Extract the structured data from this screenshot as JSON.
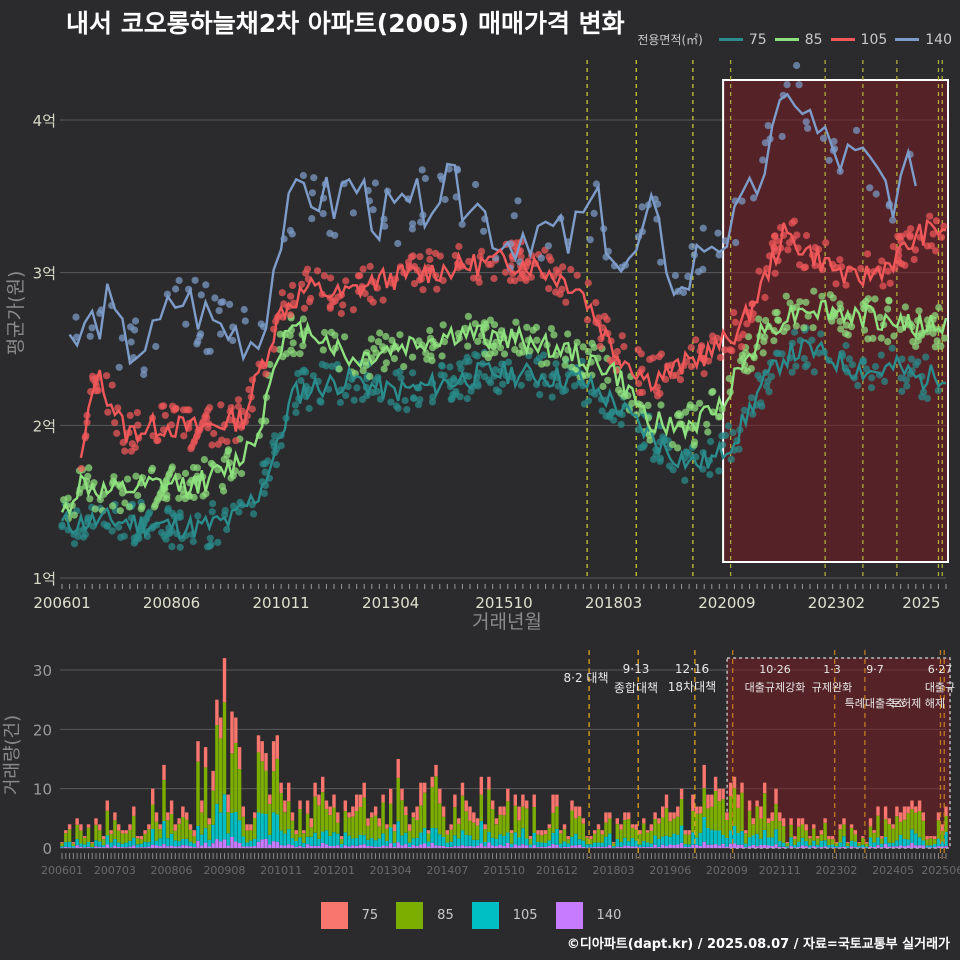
{
  "title": "내서 코오롱하늘채2차 아파트(2005) 매매가격 변화",
  "legend_title": "전용면적(㎡)",
  "series_colors": {
    "75": "#2a8c8c",
    "85": "#8fe07e",
    "105": "#f0585a",
    "140": "#7d9cc9"
  },
  "bar_colors": {
    "75": "#f8766d",
    "85": "#7cae00",
    "105": "#00bfc4",
    "140": "#c77cff"
  },
  "credit": "©디아파트(dapt.kr) / 2025.08.07 / 자료=국토교통부 실거래가",
  "chart_data": [
    {
      "type": "line",
      "xlabel": "거래년월",
      "ylabel": "평균가(원)",
      "ylim": [
        "1억",
        "4억 +"
      ],
      "y_ticks": [
        {
          "v": 1,
          "label": "1억"
        },
        {
          "v": 2,
          "label": "2억"
        },
        {
          "v": 3,
          "label": "3억"
        },
        {
          "v": 4,
          "label": "4억"
        }
      ],
      "x_ticks": [
        "200601",
        "200806",
        "201011",
        "201304",
        "201510",
        "201803",
        "202009",
        "202302",
        "2025"
      ],
      "grid": true,
      "legend": "top-right",
      "highlight_period": [
        "202008",
        "202507"
      ],
      "policy_lines": [
        "201708",
        "201809",
        "201912",
        "202010",
        "202211",
        "202309",
        "202406",
        "202505",
        "202506"
      ],
      "series": [
        {
          "name": "75",
          "x": [
            "2006-01",
            "2007-01",
            "2008-01",
            "2009-01",
            "2009-10",
            "2010-05",
            "2010-10",
            "2011-02",
            "2011-08",
            "2012-06",
            "2013-04",
            "2014-01",
            "2014-10",
            "2015-06",
            "2016-06",
            "2017-06",
            "2018-03",
            "2018-12",
            "2019-06",
            "2019-12",
            "2020-06",
            "2020-12",
            "2021-06",
            "2021-12",
            "2022-06",
            "2022-12",
            "2023-06",
            "2023-12",
            "2024-06",
            "2024-12",
            "2025-07"
          ],
          "values": [
            1.35,
            1.38,
            1.35,
            1.33,
            1.38,
            1.55,
            1.85,
            2.2,
            2.25,
            2.3,
            2.22,
            2.25,
            2.3,
            2.35,
            2.33,
            2.3,
            2.15,
            1.95,
            1.82,
            1.75,
            1.78,
            1.95,
            2.25,
            2.45,
            2.5,
            2.45,
            2.38,
            2.35,
            2.38,
            2.3,
            2.35
          ]
        },
        {
          "name": "85",
          "x": [
            "2006-01",
            "2006-06",
            "2007-01",
            "2008-01",
            "2009-01",
            "2009-10",
            "2010-05",
            "2010-10",
            "2011-01",
            "2011-08",
            "2012-06",
            "2013-04",
            "2014-01",
            "2014-10",
            "2015-06",
            "2016-06",
            "2017-06",
            "2018-03",
            "2018-12",
            "2019-06",
            "2019-12",
            "2020-06",
            "2020-12",
            "2021-06",
            "2021-12",
            "2022-06",
            "2022-12",
            "2023-06",
            "2023-12",
            "2024-06",
            "2024-12",
            "2025-07"
          ],
          "values": [
            1.4,
            1.62,
            1.55,
            1.6,
            1.62,
            1.72,
            1.95,
            2.5,
            2.6,
            2.62,
            2.42,
            2.5,
            2.55,
            2.6,
            2.58,
            2.55,
            2.45,
            2.35,
            2.05,
            1.98,
            2.0,
            2.1,
            2.35,
            2.6,
            2.7,
            2.78,
            2.75,
            2.72,
            2.7,
            2.68,
            2.65,
            2.65
          ]
        },
        {
          "name": "105",
          "x": [
            "2006-06",
            "2006-10",
            "2007-06",
            "2008-03",
            "2009-01",
            "2010-01",
            "2010-11",
            "2011-06",
            "2012-03",
            "2013-01",
            "2014-01",
            "2015-01",
            "2015-10",
            "2016-06",
            "2017-06",
            "2018-03",
            "2018-12",
            "2019-06",
            "2020-06",
            "2021-01",
            "2021-06",
            "2021-12",
            "2022-06",
            "2022-12",
            "2023-06",
            "2023-12",
            "2024-06",
            "2024-12",
            "2025-07"
          ],
          "values": [
            1.75,
            2.35,
            1.95,
            2.0,
            1.98,
            2.05,
            2.75,
            2.9,
            2.85,
            2.95,
            3.0,
            3.05,
            3.08,
            3.05,
            2.9,
            2.5,
            2.3,
            2.35,
            2.5,
            2.65,
            2.9,
            3.25,
            3.15,
            3.05,
            2.95,
            3.0,
            3.1,
            3.25,
            3.3
          ]
        },
        {
          "name": "140",
          "x": [
            "2006-03",
            "2007-01",
            "2007-06",
            "2008-01",
            "2008-08",
            "2009-06",
            "2010-05",
            "2010-11",
            "2011-05",
            "2012-01",
            "2012-06",
            "2013-01",
            "2013-08",
            "2014-06",
            "2015-01",
            "2015-10",
            "2016-06",
            "2017-03",
            "2017-10",
            "2018-06",
            "2019-01",
            "2019-09",
            "2020-03",
            "2020-10",
            "2021-03",
            "2021-09",
            "2022-03",
            "2022-09",
            "2023-03",
            "2023-10",
            "2024-06",
            "2024-12"
          ],
          "values": [
            2.5,
            2.77,
            2.5,
            2.55,
            2.85,
            2.65,
            2.55,
            3.25,
            3.55,
            3.45,
            3.6,
            3.35,
            3.4,
            3.55,
            3.5,
            3.2,
            3.3,
            3.2,
            3.45,
            2.95,
            3.35,
            2.85,
            3.2,
            3.25,
            3.45,
            3.85,
            4.2,
            3.9,
            3.75,
            3.7,
            3.5,
            3.75
          ]
        }
      ]
    },
    {
      "type": "bar",
      "stacked": true,
      "ylabel": "거래량(건)",
      "ylim": [
        0,
        32
      ],
      "y_ticks": [
        0,
        10,
        20,
        30
      ],
      "x_ticks": [
        "200601",
        "200703",
        "200806",
        "200908",
        "201011",
        "201201",
        "201304",
        "201407",
        "201510",
        "201612",
        "201803",
        "201906",
        "202009",
        "202111",
        "202302",
        "202405",
        "202506"
      ],
      "highlight_period": [
        "202008",
        "202507"
      ],
      "policy_lines": [
        {
          "date": "201708",
          "label": "8·2 대책",
          "label2": ""
        },
        {
          "date": "201809",
          "label": "9·13",
          "label2": "종합대책"
        },
        {
          "date": "201912",
          "label": "12·16",
          "label2": "18차대책"
        },
        {
          "date": "202010",
          "label": "10·26",
          "label2": "대출규제강화"
        },
        {
          "date": "202301",
          "label": "1·3",
          "label2": "규제완화"
        },
        {
          "date": "202309",
          "label": "9·7",
          "label2": "특례대출축소"
        },
        {
          "date": "202505",
          "label": "6·27",
          "label2": "대출규"
        },
        {
          "date": "202506",
          "label": "",
          "label2": "토허제 해제"
        }
      ],
      "series_order": [
        "140",
        "105",
        "85",
        "75"
      ],
      "totals_by_year": [
        {
          "year": "2006",
          "avg_month_total": 3
        },
        {
          "year": "2007",
          "avg_month_total": 5
        },
        {
          "year": "2008",
          "avg_month_total": 9
        },
        {
          "year": "2009",
          "avg_month_total": 17
        },
        {
          "year": "2010",
          "avg_month_total": 13
        },
        {
          "year": "2011",
          "avg_month_total": 8
        },
        {
          "year": "2012",
          "avg_month_total": 7
        },
        {
          "year": "2013",
          "avg_month_total": 9
        },
        {
          "year": "2014",
          "avg_month_total": 9
        },
        {
          "year": "2015",
          "avg_month_total": 8
        },
        {
          "year": "2016",
          "avg_month_total": 6
        },
        {
          "year": "2017",
          "avg_month_total": 5
        },
        {
          "year": "2018",
          "avg_month_total": 4
        },
        {
          "year": "2019",
          "avg_month_total": 7
        },
        {
          "year": "2020",
          "avg_month_total": 8
        },
        {
          "year": "2021",
          "avg_month_total": 7
        },
        {
          "year": "2022",
          "avg_month_total": 3
        },
        {
          "year": "2023",
          "avg_month_total": 3
        },
        {
          "year": "2024",
          "avg_month_total": 5
        },
        {
          "year": "2025",
          "avg_month_total": 4
        }
      ],
      "peak": {
        "date": "200908",
        "total": 32
      }
    }
  ]
}
